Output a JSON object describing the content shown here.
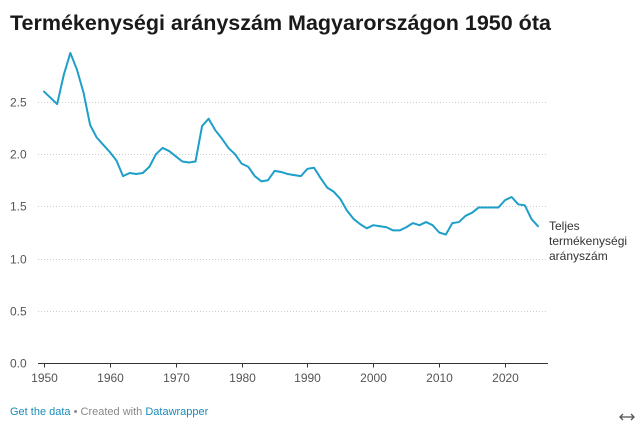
{
  "chart_data": {
    "type": "line",
    "title": "Termékenységi arányszám Magyarországon 1950 óta",
    "xlabel": "",
    "ylabel": "",
    "x": [
      1950,
      1951,
      1952,
      1953,
      1954,
      1955,
      1956,
      1957,
      1958,
      1959,
      1960,
      1961,
      1962,
      1963,
      1964,
      1965,
      1966,
      1967,
      1968,
      1969,
      1970,
      1971,
      1972,
      1973,
      1974,
      1975,
      1976,
      1977,
      1978,
      1979,
      1980,
      1981,
      1982,
      1983,
      1984,
      1985,
      1986,
      1987,
      1988,
      1989,
      1990,
      1991,
      1992,
      1993,
      1994,
      1995,
      1996,
      1997,
      1998,
      1999,
      2000,
      2001,
      2002,
      2003,
      2004,
      2005,
      2006,
      2007,
      2008,
      2009,
      2010,
      2011,
      2012,
      2013,
      2014,
      2015,
      2016,
      2017,
      2018,
      2019,
      2020,
      2021,
      2022,
      2023,
      2024,
      2025
    ],
    "series": [
      {
        "name": "Teljes termékenységi arányszám",
        "color": "#1d9fca",
        "values": [
          2.6,
          2.54,
          2.48,
          2.76,
          2.97,
          2.81,
          2.59,
          2.28,
          2.16,
          2.09,
          2.02,
          1.94,
          1.79,
          1.82,
          1.81,
          1.82,
          1.88,
          2.0,
          2.06,
          2.03,
          1.98,
          1.93,
          1.92,
          1.93,
          2.27,
          2.34,
          2.23,
          2.15,
          2.06,
          2.0,
          1.91,
          1.88,
          1.79,
          1.74,
          1.75,
          1.84,
          1.83,
          1.81,
          1.8,
          1.79,
          1.86,
          1.87,
          1.77,
          1.68,
          1.64,
          1.57,
          1.46,
          1.38,
          1.33,
          1.29,
          1.32,
          1.31,
          1.3,
          1.27,
          1.27,
          1.3,
          1.34,
          1.32,
          1.35,
          1.32,
          1.25,
          1.23,
          1.34,
          1.35,
          1.41,
          1.44,
          1.49,
          1.49,
          1.49,
          1.49,
          1.56,
          1.59,
          1.52,
          1.51,
          1.38,
          1.31
        ]
      }
    ],
    "xlim": [
      1950,
      2025
    ],
    "ylim": [
      0,
      3
    ],
    "x_ticks": [
      1950,
      1960,
      1970,
      1980,
      1990,
      2000,
      2010,
      2020
    ],
    "x_tick_labels": [
      "1950",
      "1960",
      "1970",
      "1980",
      "1990",
      "2000",
      "2010",
      "2020"
    ],
    "y_ticks": [
      0,
      0.5,
      1,
      1.5,
      2,
      2.5
    ],
    "y_tick_labels": [
      "0.0",
      "0.5",
      "1.0",
      "1.5",
      "2.0",
      "2.5"
    ],
    "grid": true,
    "legend": "right"
  },
  "footer": {
    "get_data_label": "Get the data",
    "separator": " • Created with ",
    "datawrapper_label": "Datawrapper"
  },
  "icons": {
    "resize": "horizontal-double-arrow-icon"
  },
  "colors": {
    "series_line": "#1d9fca",
    "link": "#1a8bb8",
    "title": "#1a1a1a",
    "axis_text": "#555555",
    "gridline": "#cccccc",
    "baseline": "#333333"
  }
}
